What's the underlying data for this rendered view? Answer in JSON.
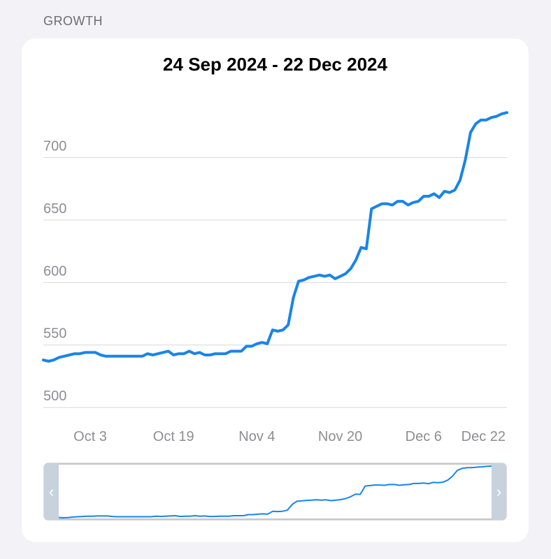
{
  "section": {
    "title": "GROWTH"
  },
  "chart_data": {
    "type": "line",
    "title": "24 Sep 2024 - 22 Dec 2024",
    "x_start": "2024-09-24",
    "x_end": "2024-12-22",
    "ylim": [
      490,
      745
    ],
    "yticks": [
      500,
      550,
      600,
      650,
      700
    ],
    "xticks": [
      {
        "label": "Oct 3",
        "date": "2024-10-03"
      },
      {
        "label": "Oct 19",
        "date": "2024-10-19"
      },
      {
        "label": "Nov 4",
        "date": "2024-11-04"
      },
      {
        "label": "Nov 20",
        "date": "2024-11-20"
      },
      {
        "label": "Dec 6",
        "date": "2024-12-06"
      },
      {
        "label": "Dec 22",
        "date": "2024-12-22"
      }
    ],
    "grid": true,
    "color": "#1a84e8",
    "series": [
      {
        "x": [
          "2024-09-24",
          "2024-09-25",
          "2024-09-26",
          "2024-09-27",
          "2024-09-28",
          "2024-09-29",
          "2024-09-30",
          "2024-10-01",
          "2024-10-02",
          "2024-10-03",
          "2024-10-04",
          "2024-10-05",
          "2024-10-06",
          "2024-10-07",
          "2024-10-08",
          "2024-10-09",
          "2024-10-10",
          "2024-10-11",
          "2024-10-12",
          "2024-10-13",
          "2024-10-14",
          "2024-10-15",
          "2024-10-16",
          "2024-10-17",
          "2024-10-18",
          "2024-10-19",
          "2024-10-20",
          "2024-10-21",
          "2024-10-22",
          "2024-10-23",
          "2024-10-24",
          "2024-10-25",
          "2024-10-26",
          "2024-10-27",
          "2024-10-28",
          "2024-10-29",
          "2024-10-30",
          "2024-10-31",
          "2024-11-01",
          "2024-11-02",
          "2024-11-03",
          "2024-11-04",
          "2024-11-05",
          "2024-11-06",
          "2024-11-07",
          "2024-11-08",
          "2024-11-09",
          "2024-11-10",
          "2024-11-11",
          "2024-11-12",
          "2024-11-13",
          "2024-11-14",
          "2024-11-15",
          "2024-11-16",
          "2024-11-17",
          "2024-11-18",
          "2024-11-19",
          "2024-11-20",
          "2024-11-21",
          "2024-11-22",
          "2024-11-23",
          "2024-11-24",
          "2024-11-25",
          "2024-11-26",
          "2024-11-27",
          "2024-11-28",
          "2024-11-29",
          "2024-11-30",
          "2024-12-01",
          "2024-12-02",
          "2024-12-03",
          "2024-12-04",
          "2024-12-05",
          "2024-12-06",
          "2024-12-07",
          "2024-12-08",
          "2024-12-09",
          "2024-12-10",
          "2024-12-11",
          "2024-12-12",
          "2024-12-13",
          "2024-12-14",
          "2024-12-15",
          "2024-12-16",
          "2024-12-17",
          "2024-12-18",
          "2024-12-19",
          "2024-12-20",
          "2024-12-21",
          "2024-12-22"
        ],
        "y": [
          538,
          537,
          538,
          540,
          541,
          542,
          543,
          543,
          544,
          544,
          544,
          542,
          541,
          541,
          541,
          541,
          541,
          541,
          541,
          541,
          543,
          542,
          543,
          544,
          545,
          542,
          543,
          543,
          545,
          543,
          544,
          542,
          542,
          543,
          543,
          543,
          545,
          545,
          545,
          549,
          549,
          551,
          552,
          551,
          562,
          561,
          562,
          566,
          588,
          601,
          602,
          604,
          605,
          606,
          605,
          606,
          603,
          605,
          607,
          611,
          618,
          628,
          627,
          659,
          661,
          663,
          663,
          662,
          665,
          665,
          662,
          664,
          665,
          669,
          669,
          671,
          668,
          673,
          672,
          674,
          682,
          698,
          720,
          727,
          730,
          730,
          732,
          733,
          735,
          736
        ]
      }
    ]
  },
  "navigator": {
    "left_handle": "‹",
    "right_handle": "›"
  }
}
